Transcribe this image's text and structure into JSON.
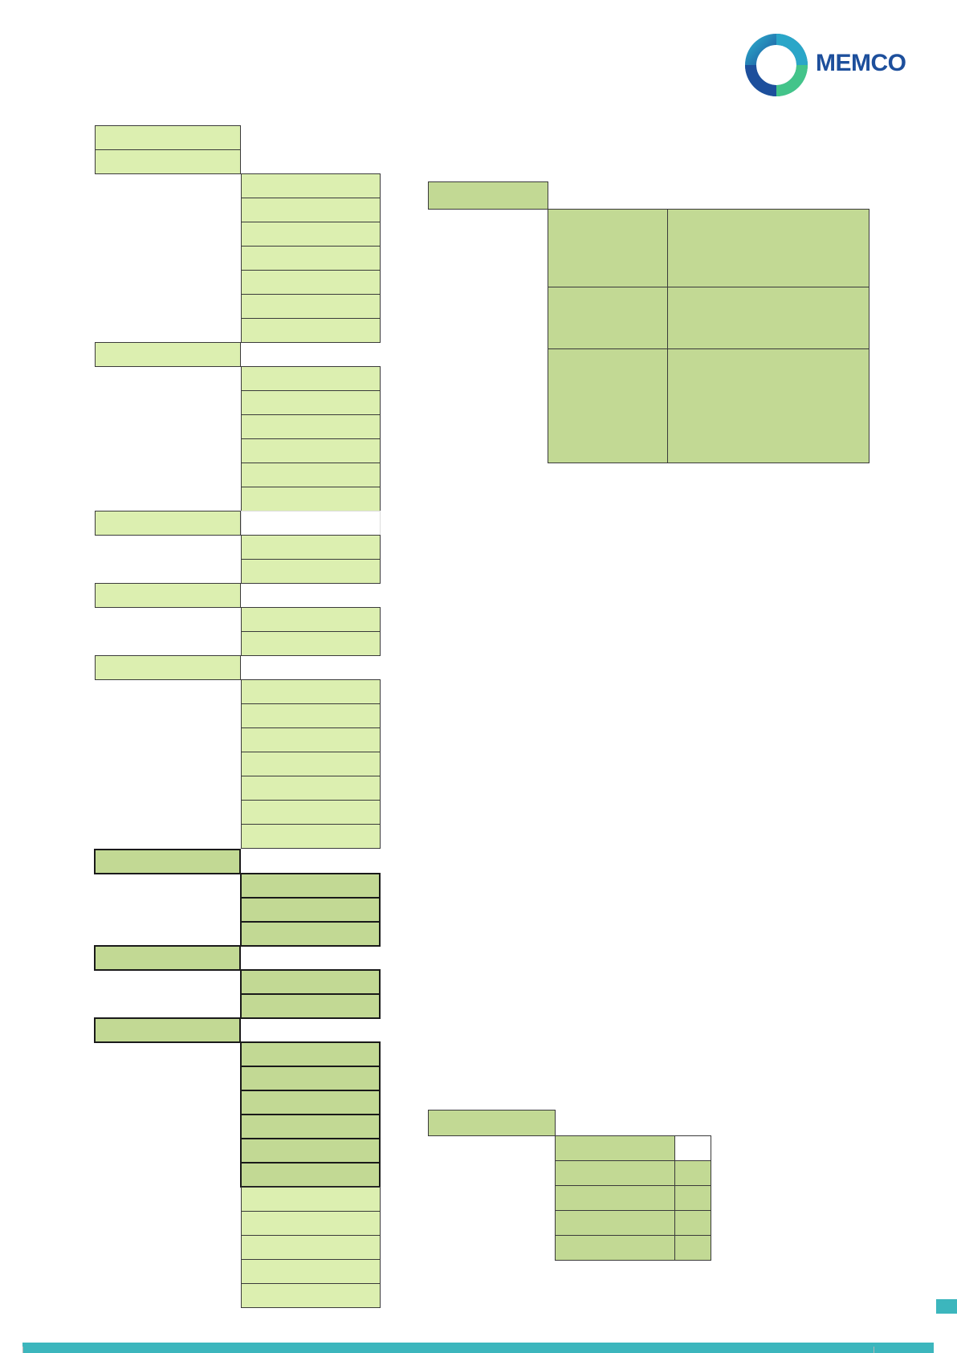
{
  "brand": {
    "name": "MEMCO",
    "text_color": "#1d4f9c",
    "ring_colors": [
      "#1d4f9c",
      "#2aa6c8",
      "#43c48a"
    ]
  },
  "colors": {
    "light_fill": "#dcefb0",
    "dark_fill": "#c2d994",
    "accent_bar": "#3cb6bd"
  }
}
